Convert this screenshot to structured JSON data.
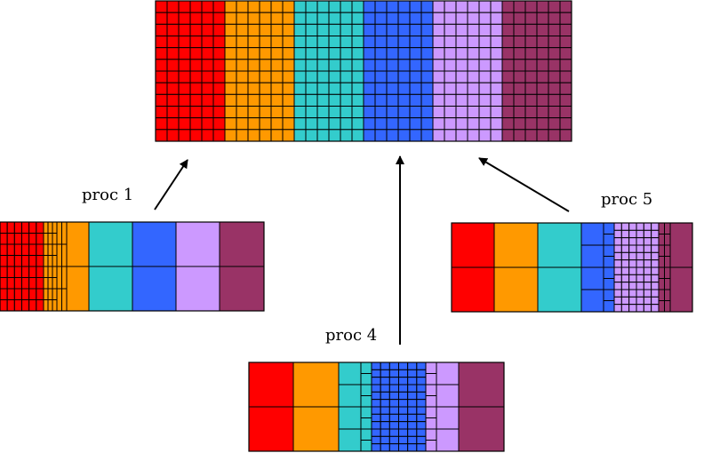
{
  "colors": {
    "red": "#ff0000",
    "orange": "#ff9900",
    "teal": "#33cccc",
    "blue": "#3366ff",
    "lilac": "#cc99ff",
    "plum": "#993366",
    "grid": "#000000"
  },
  "labels": {
    "proc1": "proc 1",
    "proc4": "proc 4",
    "proc5": "proc 5"
  },
  "global_mesh": {
    "bands": [
      "red",
      "orange",
      "teal",
      "blue",
      "lilac",
      "plum"
    ],
    "cells_per_band": 6,
    "rows": 12
  },
  "processors": [
    {
      "id": "proc1",
      "rows_of_fine": 8,
      "columns": [
        {
          "color": "red",
          "cols": 6,
          "rows": 8
        },
        {
          "color": "orange",
          "cols": 3,
          "rows": 8
        },
        {
          "color": "orange",
          "cols": 2,
          "rows": 4
        },
        {
          "color": "orange",
          "cols": 1,
          "rows": 2
        },
        {
          "color": "teal",
          "cols": 1,
          "rows": 2
        },
        {
          "color": "blue",
          "cols": 1,
          "rows": 2
        },
        {
          "color": "lilac",
          "cols": 1,
          "rows": 2
        },
        {
          "color": "plum",
          "cols": 1,
          "rows": 2
        }
      ]
    },
    {
      "id": "proc4",
      "columns": [
        {
          "color": "red",
          "cols": 1,
          "rows": 2
        },
        {
          "color": "orange",
          "cols": 1,
          "rows": 2
        },
        {
          "color": "teal",
          "cols": 1,
          "rows": 4
        },
        {
          "color": "teal",
          "cols": 1,
          "rows": 8
        },
        {
          "color": "blue",
          "cols": 6,
          "rows": 12
        },
        {
          "color": "lilac",
          "cols": 1,
          "rows": 8
        },
        {
          "color": "lilac",
          "cols": 1,
          "rows": 4
        },
        {
          "color": "plum",
          "cols": 1,
          "rows": 2
        }
      ]
    },
    {
      "id": "proc5",
      "columns": [
        {
          "color": "red",
          "cols": 1,
          "rows": 2
        },
        {
          "color": "orange",
          "cols": 1,
          "rows": 2
        },
        {
          "color": "teal",
          "cols": 1,
          "rows": 2
        },
        {
          "color": "blue",
          "cols": 1,
          "rows": 4
        },
        {
          "color": "blue",
          "cols": 1,
          "rows": 8
        },
        {
          "color": "lilac",
          "cols": 6,
          "rows": 12
        },
        {
          "color": "plum",
          "cols": 2,
          "rows": 8
        },
        {
          "color": "plum",
          "cols": 1,
          "rows": 2
        }
      ]
    }
  ]
}
